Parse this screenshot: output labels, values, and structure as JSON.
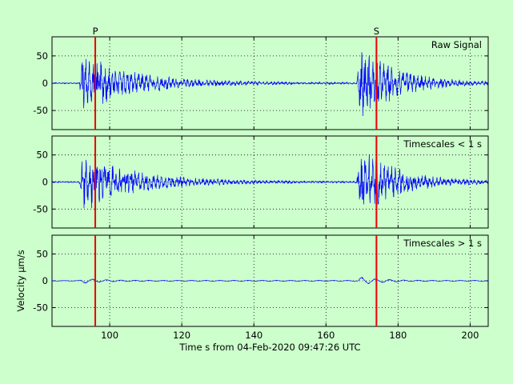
{
  "chart_data": {
    "type": "line",
    "xlabel": "Time s from 04-Feb-2020 09:47:26 UTC",
    "ylabel": "Velocity μm/s",
    "xlim": [
      84,
      205
    ],
    "x_ticks": [
      100,
      120,
      140,
      160,
      180,
      200
    ],
    "ylim": [
      -85,
      85
    ],
    "y_ticks": [
      -50,
      0,
      50
    ],
    "grid": true,
    "line_color": "#0000ff",
    "marker_color": "#ee0000",
    "background": "#ccffcc",
    "markers": [
      {
        "label": "P",
        "x": 96
      },
      {
        "label": "S",
        "x": 174
      }
    ],
    "panels": [
      {
        "label": "Raw Signal",
        "events": [
          {
            "start": 91.5,
            "peak_amplitude": 60,
            "decay_s": 14,
            "duration_s": 60
          },
          {
            "start": 168.5,
            "peak_amplitude": 80,
            "decay_s": 10,
            "duration_s": 36.5
          }
        ],
        "noise_amplitude": 2
      },
      {
        "label": "Timescales < 1 s",
        "events": [
          {
            "start": 91.5,
            "peak_amplitude": 60,
            "decay_s": 14,
            "duration_s": 60
          },
          {
            "start": 168.5,
            "peak_amplitude": 80,
            "decay_s": 10,
            "duration_s": 36.5
          }
        ],
        "noise_amplitude": 2
      },
      {
        "label": "Timescales > 1 s",
        "events": [
          {
            "start": 91.5,
            "peak_amplitude": 5,
            "decay_s": 6,
            "duration_s": 20
          },
          {
            "start": 168.5,
            "peak_amplitude": 8,
            "decay_s": 6,
            "duration_s": 20
          }
        ],
        "noise_amplitude": 0.8
      }
    ]
  }
}
